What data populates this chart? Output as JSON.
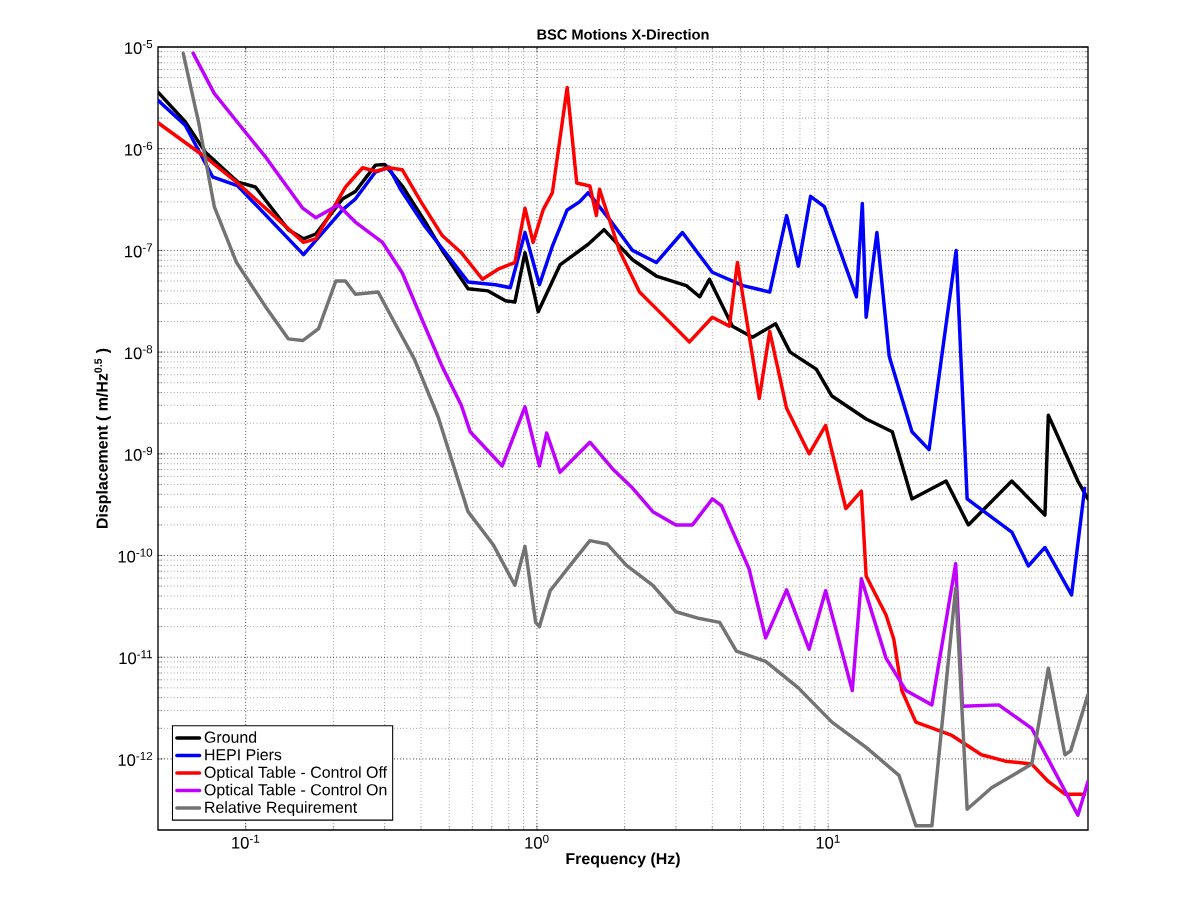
{
  "chart_data": {
    "type": "line",
    "title": "BSC Motions X-Direction",
    "xlabel": "Frequency (Hz)",
    "ylabel": "Displacement ( m/Hz$^{0.5}$ )",
    "log": "xy",
    "grid": true,
    "legend": "bottom left",
    "xlim": [
      0.05,
      78
    ],
    "ylim": [
      2e-13,
      1e-05
    ],
    "xticks": [
      {
        "value": 0.1,
        "label": "10$^{-1}$"
      },
      {
        "value": 1,
        "label": "10$^{0}$"
      },
      {
        "value": 10,
        "label": "10$^{1}$"
      }
    ],
    "yticks": [
      {
        "value": 1e-12,
        "label": "10$^{-12}$"
      },
      {
        "value": 1e-11,
        "label": "10$^{-11}$"
      },
      {
        "value": 1e-10,
        "label": "10$^{-10}$"
      },
      {
        "value": 1e-09,
        "label": "10$^{-9}$"
      },
      {
        "value": 1e-08,
        "label": "10$^{-8}$"
      },
      {
        "value": 1e-07,
        "label": "10$^{-7}$"
      },
      {
        "value": 1e-06,
        "label": "10$^{-6}$"
      },
      {
        "value": 1e-05,
        "label": "10$^{-5}$"
      }
    ],
    "series": [
      {
        "name": "Ground",
        "color": "#000000",
        "x": [
          0.05,
          0.062,
          0.073,
          0.094,
          0.108,
          0.14,
          0.158,
          0.174,
          0.215,
          0.238,
          0.279,
          0.3,
          0.345,
          0.414,
          0.473,
          0.58,
          0.68,
          0.78,
          0.84,
          0.91,
          1.01,
          1.2,
          1.5,
          1.7,
          1.82,
          2.13,
          2.57,
          3.26,
          3.62,
          3.91,
          4.69,
          5.5,
          6.6,
          7.4,
          9.1,
          10.3,
          13.5,
          16.6,
          19.4,
          25.4,
          30.3,
          42.7,
          55.5,
          57,
          72,
          78
        ],
        "values": [
          3.6e-06,
          1.84e-06,
          9.1e-07,
          4.7e-07,
          4.2e-07,
          1.6e-07,
          1.3e-07,
          1.45e-07,
          3.2e-07,
          3.8e-07,
          6.9e-07,
          7e-07,
          4.3e-07,
          1.9e-07,
          1e-07,
          4.2e-08,
          4e-08,
          3.2e-08,
          3.1e-08,
          9.5e-08,
          2.5e-08,
          7.2e-08,
          1.15e-07,
          1.6e-07,
          1.3e-07,
          8.1e-08,
          5.6e-08,
          4.5e-08,
          3.5e-08,
          5.2e-08,
          1.8e-08,
          1.4e-08,
          1.9e-08,
          1e-08,
          6.8e-09,
          3.7e-09,
          2.2e-09,
          1.65e-09,
          3.6e-10,
          5.4e-10,
          2e-10,
          5.4e-10,
          2.5e-10,
          2.4e-09,
          5.4e-10,
          3.6e-10
        ]
      },
      {
        "name": "HEPI Piers",
        "color": "#0000ff",
        "x": [
          0.05,
          0.062,
          0.077,
          0.094,
          0.158,
          0.215,
          0.238,
          0.279,
          0.31,
          0.34,
          0.414,
          0.5,
          0.58,
          0.72,
          0.81,
          0.91,
          1.02,
          1.13,
          1.27,
          1.4,
          1.5,
          1.78,
          2.13,
          2.57,
          3.16,
          4.0,
          5.1,
          6.3,
          7.2,
          7.9,
          8.7,
          9.7,
          12.5,
          13.1,
          13.5,
          14.7,
          16.2,
          19.4,
          22.2,
          27.5,
          30,
          42.7,
          48.7,
          55.5,
          68.5,
          76
        ],
        "values": [
          3e-06,
          1.7e-06,
          5.3e-07,
          4.3e-07,
          9.1e-08,
          2.5e-07,
          3.2e-07,
          5.9e-07,
          6.6e-07,
          4e-07,
          1.7e-07,
          8.5e-08,
          4.9e-08,
          4.6e-08,
          4.3e-08,
          1.5e-07,
          4.6e-08,
          1.1e-07,
          2.5e-07,
          3e-07,
          3.7e-07,
          2e-07,
          1e-07,
          7.6e-08,
          1.5e-07,
          6.1e-08,
          4.5e-08,
          3.9e-08,
          2.2e-07,
          7e-08,
          3.4e-07,
          2.7e-07,
          3.5e-08,
          2.9e-07,
          2.2e-08,
          1.5e-07,
          9.1e-09,
          1.65e-09,
          1.1e-09,
          1e-07,
          3.6e-10,
          1.7e-10,
          7.9e-11,
          1.2e-10,
          4.1e-11,
          4.6e-10
        ]
      },
      {
        "name": "Optical Table - Control Off",
        "color": "#ff0000",
        "x": [
          0.05,
          0.073,
          0.093,
          0.158,
          0.174,
          0.22,
          0.252,
          0.279,
          0.31,
          0.345,
          0.4,
          0.473,
          0.55,
          0.65,
          0.74,
          0.84,
          0.91,
          0.97,
          1.05,
          1.13,
          1.27,
          1.37,
          1.52,
          1.6,
          1.64,
          1.92,
          2.25,
          2.63,
          3.34,
          4.0,
          4.58,
          4.88,
          5.8,
          6.3,
          7.2,
          8.6,
          9.8,
          11.5,
          13,
          13.5,
          15.8,
          16.8,
          17.9,
          20,
          26.6,
          33.6,
          40.6,
          50,
          57,
          65,
          76
        ],
        "values": [
          1.8e-06,
          8.2e-07,
          4.7e-07,
          1.2e-07,
          1.3e-07,
          4.2e-07,
          6.5e-07,
          6e-07,
          6.5e-07,
          6.2e-07,
          3e-07,
          1.4e-07,
          9.5e-08,
          5.2e-08,
          6.6e-08,
          7.6e-08,
          2.6e-07,
          1.2e-07,
          2.5e-07,
          3.7e-07,
          4e-06,
          4.6e-07,
          4.3e-07,
          2.2e-07,
          4e-07,
          1e-07,
          3.9e-08,
          2.5e-08,
          1.26e-08,
          2.2e-08,
          1.8e-08,
          7.6e-08,
          3.5e-09,
          1.6e-08,
          2.8e-09,
          1e-09,
          1.9e-09,
          2.9e-10,
          4.3e-10,
          6.3e-11,
          2.6e-11,
          1.5e-11,
          4.7e-12,
          2.3e-12,
          1.7e-12,
          1.1e-12,
          9.5e-13,
          8.9e-13,
          6e-13,
          4.5e-13,
          4.5e-13
        ]
      },
      {
        "name": "Optical Table -  Control On",
        "color": "#bf00ff",
        "x": [
          0.066,
          0.078,
          0.094,
          0.117,
          0.157,
          0.174,
          0.208,
          0.238,
          0.295,
          0.345,
          0.4,
          0.473,
          0.55,
          0.59,
          0.76,
          0.91,
          1.02,
          1.08,
          1.2,
          1.52,
          1.82,
          2.13,
          2.5,
          3.0,
          3.42,
          4.0,
          4.3,
          5.35,
          6.1,
          7.2,
          8.6,
          9.8,
          12.1,
          13,
          15.8,
          18.5,
          22.7,
          27.4,
          28.9,
          38.5,
          50,
          72,
          78
        ],
        "values": [
          8.7e-06,
          3.5e-06,
          1.8e-06,
          8.3e-07,
          2.6e-07,
          2.1e-07,
          2.8e-07,
          1.9e-07,
          1.2e-07,
          6e-08,
          2.2e-08,
          7.2e-09,
          3e-09,
          1.65e-09,
          7.6e-10,
          2.9e-09,
          7.6e-10,
          1.6e-09,
          6.6e-10,
          1.3e-09,
          7.1e-10,
          4.6e-10,
          2.7e-10,
          2e-10,
          2e-10,
          3.6e-10,
          3.1e-10,
          7.4e-11,
          1.55e-11,
          4.6e-11,
          1.2e-11,
          4.5e-11,
          4.7e-12,
          5.9e-11,
          9.8e-12,
          4.7e-12,
          3.4e-12,
          8.3e-11,
          3.3e-12,
          3.4e-12,
          2e-12,
          2.8e-13,
          6e-13
        ]
      },
      {
        "name": "Relative Requirement",
        "color": "#737373",
        "x": [
          0.061,
          0.069,
          0.078,
          0.093,
          0.117,
          0.14,
          0.157,
          0.178,
          0.204,
          0.22,
          0.238,
          0.285,
          0.326,
          0.38,
          0.458,
          0.58,
          0.71,
          0.84,
          0.91,
          0.99,
          1.02,
          1.11,
          1.3,
          1.52,
          1.74,
          2.03,
          2.5,
          3.0,
          3.62,
          4.24,
          4.84,
          6.1,
          7.9,
          10.3,
          13.5,
          17.5,
          20,
          22.7,
          27.4,
          30,
          36.4,
          50,
          57,
          65,
          68,
          78
        ],
        "values": [
          8.7e-06,
          1.8e-06,
          2.7e-07,
          7.6e-08,
          2.8e-08,
          1.35e-08,
          1.3e-08,
          1.7e-08,
          5e-08,
          5e-08,
          3.7e-08,
          3.9e-08,
          1.9e-08,
          8.5e-09,
          2.3e-09,
          2.7e-10,
          1.26e-10,
          5.1e-11,
          1.23e-10,
          2.2e-11,
          2e-11,
          4.5e-11,
          8e-11,
          1.4e-10,
          1.3e-10,
          8e-11,
          5.1e-11,
          2.8e-11,
          2.4e-11,
          2.2e-11,
          1.15e-11,
          9.1e-12,
          5e-12,
          2.3e-12,
          1.3e-12,
          6.9e-13,
          2.2e-13,
          2.2e-13,
          4.8e-11,
          3.2e-13,
          5.2e-13,
          8.9e-13,
          7.8e-12,
          1.1e-12,
          1.2e-12,
          4.3e-12
        ]
      }
    ]
  }
}
